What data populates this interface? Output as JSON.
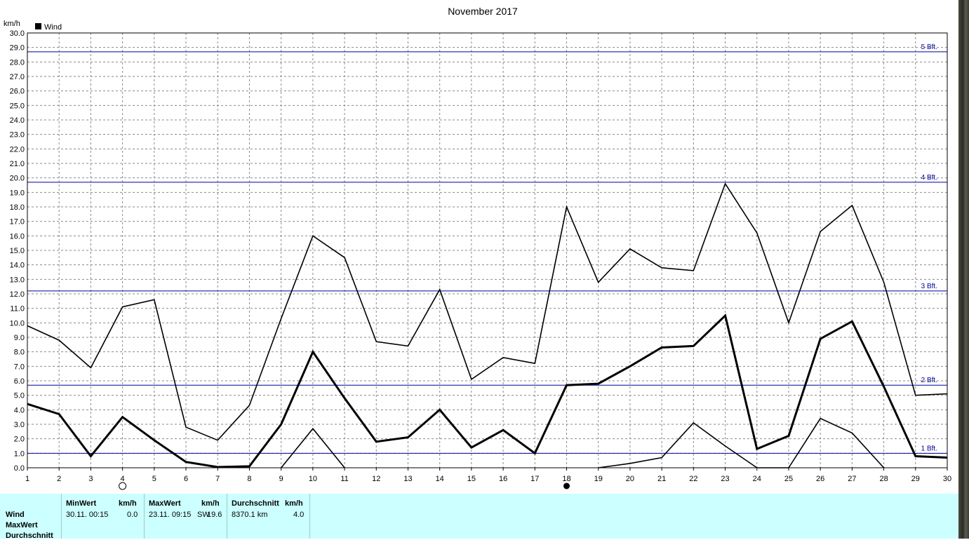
{
  "chart_data": {
    "type": "line",
    "title": "November 2017",
    "ylabel": "km/h",
    "xlabel": "",
    "legend": [
      {
        "name": "Wind",
        "color": "#000000"
      }
    ],
    "legend_placement": "top-left",
    "grid": true,
    "ylim": [
      0,
      30
    ],
    "xlim": [
      1,
      30
    ],
    "x": [
      1,
      2,
      3,
      4,
      5,
      6,
      7,
      8,
      9,
      10,
      11,
      12,
      13,
      14,
      15,
      16,
      17,
      18,
      19,
      20,
      21,
      22,
      23,
      24,
      25,
      26,
      27,
      28,
      29,
      30
    ],
    "yticks": [
      "0.0",
      "1.0",
      "2.0",
      "3.0",
      "4.0",
      "5.0",
      "6.0",
      "7.0",
      "8.0",
      "9.0",
      "10.0",
      "11.0",
      "12.0",
      "13.0",
      "14.0",
      "15.0",
      "16.0",
      "17.0",
      "18.0",
      "19.0",
      "20.0",
      "21.0",
      "22.0",
      "23.0",
      "24.0",
      "25.0",
      "26.0",
      "27.0",
      "28.0",
      "29.0",
      "30.0"
    ],
    "xticks": [
      "1",
      "2",
      "3",
      "4",
      "5",
      "6",
      "7",
      "8",
      "9",
      "10",
      "11",
      "12",
      "13",
      "14",
      "15",
      "16",
      "17",
      "18",
      "19",
      "20",
      "21",
      "22",
      "23",
      "24",
      "25",
      "26",
      "27",
      "28",
      "29",
      "30"
    ],
    "series": [
      {
        "kind": "max",
        "color": "#000000",
        "values": [
          9.8,
          8.8,
          6.9,
          11.1,
          11.6,
          2.8,
          1.9,
          4.3,
          10.3,
          16.0,
          14.5,
          8.7,
          8.4,
          12.3,
          6.1,
          7.6,
          7.2,
          18.0,
          12.8,
          15.1,
          13.8,
          13.6,
          19.6,
          16.2,
          10.0,
          16.3,
          18.1,
          12.8,
          5.0,
          5.1
        ]
      },
      {
        "kind": "avg",
        "color": "#000000",
        "values": [
          4.4,
          3.7,
          0.8,
          3.5,
          1.9,
          0.4,
          0.05,
          0.1,
          3.0,
          8.0,
          4.8,
          1.8,
          2.1,
          4.0,
          1.4,
          2.6,
          1.0,
          5.7,
          5.8,
          7.0,
          8.3,
          8.4,
          10.5,
          1.3,
          2.2,
          8.9,
          10.1,
          5.6,
          0.8,
          0.7
        ]
      },
      {
        "kind": "min",
        "color": "#000000",
        "values": [
          null,
          null,
          null,
          null,
          null,
          null,
          null,
          null,
          0.0,
          2.7,
          0.0,
          null,
          null,
          null,
          null,
          null,
          null,
          null,
          0.0,
          0.3,
          0.7,
          3.1,
          1.5,
          0.0,
          0.0,
          3.4,
          2.4,
          0.0,
          null,
          null
        ]
      }
    ],
    "reference_lines": [
      {
        "label": "5 Bft.",
        "value": 28.7,
        "color": "#000099"
      },
      {
        "label": "4 Bft.",
        "value": 19.7,
        "color": "#000099"
      },
      {
        "label": "3 Bft.",
        "value": 12.2,
        "color": "#000099"
      },
      {
        "label": "2 Bft.",
        "value": 5.7,
        "color": "#000099"
      },
      {
        "label": "1 Bft.",
        "value": 1.0,
        "color": "#000099"
      }
    ],
    "moon_phases": [
      {
        "x": 4.0,
        "phase": "full-moon"
      },
      {
        "x": 18.0,
        "phase": "new-moon"
      }
    ]
  },
  "stats": {
    "headers": {
      "min": "MinWert",
      "max": "MaxWert",
      "avg": "Durchschnitt",
      "unit": "km/h",
      "avg_unit": "km/h"
    },
    "row_labels": [
      "Wind",
      "MaxWert",
      "Durchschnitt"
    ],
    "wind": {
      "min_time": "30.11.  00:15",
      "min_value": "0.0",
      "max_time": "23.11.  09:15",
      "max_dir": "SW",
      "max_value": "19.6",
      "distance": "8370.1 km",
      "avg_value": "4.0"
    }
  },
  "colors": {
    "stats_background": "#ccffff",
    "grid": "#888888",
    "reference": "#000099"
  }
}
